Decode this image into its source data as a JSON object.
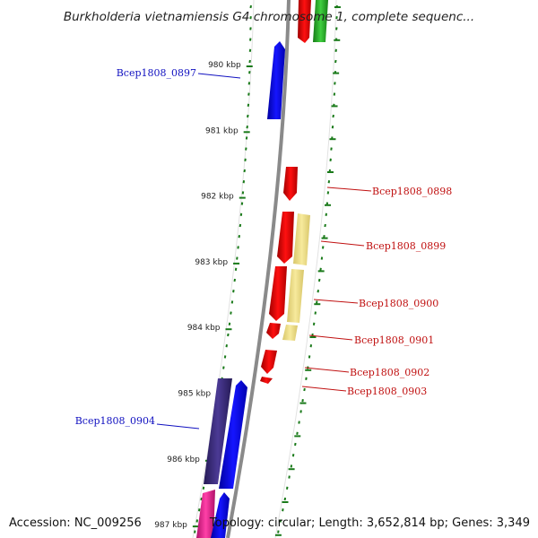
{
  "title": "Burkholderia vietnamiensis G4 chromosome 1, complete sequenc...",
  "footer": {
    "accession": "Accession: NC_009256",
    "info": "Topology: circular; Length: 3,652,814 bp; Genes: 3,349"
  },
  "ticks": [
    {
      "label": "980 kbp",
      "kbp": 980
    },
    {
      "label": "981 kbp",
      "kbp": 981
    },
    {
      "label": "982 kbp",
      "kbp": 982
    },
    {
      "label": "983 kbp",
      "kbp": 983
    },
    {
      "label": "984 kbp",
      "kbp": 984
    },
    {
      "label": "985 kbp",
      "kbp": 985
    },
    {
      "label": "986 kbp",
      "kbp": 986
    },
    {
      "label": "987 kbp",
      "kbp": 987
    }
  ],
  "genes": [
    {
      "label": "Bcep1808_0897",
      "strand": "minus",
      "color": "#0b0bd6"
    },
    {
      "label": "Bcep1808_0898",
      "strand": "plus",
      "color": "#e00000"
    },
    {
      "label": "Bcep1808_0899",
      "strand": "plus",
      "color": "#e00000"
    },
    {
      "label": "Bcep1808_0900",
      "strand": "plus",
      "color": "#e00000"
    },
    {
      "label": "Bcep1808_0901",
      "strand": "plus",
      "color": "#e00000"
    },
    {
      "label": "Bcep1808_0902",
      "strand": "plus",
      "color": "#e00000"
    },
    {
      "label": "Bcep1808_0903",
      "strand": "plus",
      "color": "#e00000"
    },
    {
      "label": "Bcep1808_0904",
      "strand": "minus",
      "color": "#0b0bd6"
    }
  ],
  "colors": {
    "backbone": "#8a8a8a",
    "ticks": "#1a7a1a",
    "minus_label": "#1010c0",
    "plus_label": "#c01010",
    "green_feature": "#2aa82a",
    "yellow_feature": "#f0e08a",
    "purple_feature": "#3b2a7a",
    "pink_feature": "#e8208a"
  }
}
